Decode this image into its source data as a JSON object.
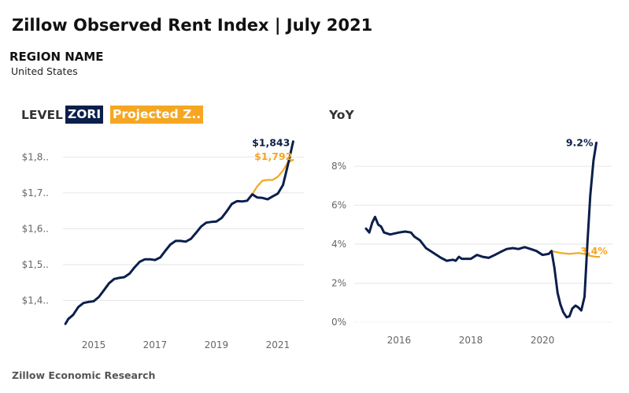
{
  "header": {
    "title": "Zillow Observed Rent Index | July 2021",
    "region_label": "REGION NAME",
    "region_value": "United States",
    "footer": "Zillow Economic Research"
  },
  "colors": {
    "actual": "#0b1f4b",
    "projected": "#f5a623",
    "grid": "#e6e6e6",
    "tick": "#666666"
  },
  "chart_data": [
    {
      "type": "line",
      "title": "LEVEL",
      "legend": [
        "ZORI",
        "Projected Z.."
      ],
      "x_ticks": [
        2015,
        2017,
        2019,
        2021
      ],
      "y_ticks": [
        1400,
        1500,
        1600,
        1700,
        1800
      ],
      "y_tick_labels": [
        "$1,4..",
        "$1,5..",
        "$1,6..",
        "$1,7..",
        "$1,8.."
      ],
      "xlim": [
        2014.0,
        2021.85
      ],
      "ylim": [
        1320,
        1860
      ],
      "grid": "horizontal",
      "end_labels": {
        "actual": "$1,843",
        "projected": "$1,792"
      },
      "series": [
        {
          "name": "ZORI",
          "points": [
            [
              2014.08,
              1335
            ],
            [
              2014.17,
              1348
            ],
            [
              2014.33,
              1360
            ],
            [
              2014.5,
              1382
            ],
            [
              2014.67,
              1393
            ],
            [
              2014.83,
              1396
            ],
            [
              2015.0,
              1398
            ],
            [
              2015.17,
              1410
            ],
            [
              2015.33,
              1428
            ],
            [
              2015.5,
              1448
            ],
            [
              2015.67,
              1460
            ],
            [
              2015.83,
              1463
            ],
            [
              2016.0,
              1465
            ],
            [
              2016.17,
              1475
            ],
            [
              2016.33,
              1492
            ],
            [
              2016.5,
              1508
            ],
            [
              2016.67,
              1515
            ],
            [
              2016.83,
              1515
            ],
            [
              2017.0,
              1513
            ],
            [
              2017.17,
              1520
            ],
            [
              2017.33,
              1538
            ],
            [
              2017.5,
              1556
            ],
            [
              2017.67,
              1566
            ],
            [
              2017.83,
              1566
            ],
            [
              2018.0,
              1564
            ],
            [
              2018.17,
              1572
            ],
            [
              2018.33,
              1588
            ],
            [
              2018.5,
              1606
            ],
            [
              2018.67,
              1617
            ],
            [
              2018.83,
              1619
            ],
            [
              2019.0,
              1620
            ],
            [
              2019.17,
              1630
            ],
            [
              2019.33,
              1648
            ],
            [
              2019.5,
              1669
            ],
            [
              2019.67,
              1677
            ],
            [
              2019.83,
              1676
            ],
            [
              2020.0,
              1678
            ],
            [
              2020.17,
              1696
            ],
            [
              2020.33,
              1687
            ],
            [
              2020.5,
              1686
            ],
            [
              2020.67,
              1682
            ],
            [
              2020.83,
              1690
            ],
            [
              2021.0,
              1698
            ],
            [
              2021.17,
              1722
            ],
            [
              2021.33,
              1778
            ],
            [
              2021.5,
              1843
            ]
          ]
        },
        {
          "name": "Projected Z..",
          "points": [
            [
              2020.17,
              1696
            ],
            [
              2020.33,
              1718
            ],
            [
              2020.5,
              1734
            ],
            [
              2020.67,
              1736
            ],
            [
              2020.83,
              1736
            ],
            [
              2021.0,
              1745
            ],
            [
              2021.17,
              1762
            ],
            [
              2021.33,
              1785
            ],
            [
              2021.5,
              1792
            ]
          ]
        }
      ]
    },
    {
      "type": "line",
      "title": "YoY",
      "x_ticks": [
        2016,
        2018,
        2020
      ],
      "y_ticks": [
        0,
        2,
        4,
        6,
        8
      ],
      "y_tick_labels": [
        "0%",
        "2%",
        "4%",
        "6%",
        "8%"
      ],
      "xlim": [
        2014.75,
        2021.95
      ],
      "ylim": [
        0,
        9.5
      ],
      "grid": "horizontal",
      "end_labels": {
        "actual": "9.2%",
        "projected": "3.4%"
      },
      "series": [
        {
          "name": "YoY",
          "points": [
            [
              2015.08,
              4.8
            ],
            [
              2015.17,
              4.6
            ],
            [
              2015.25,
              5.1
            ],
            [
              2015.33,
              5.4
            ],
            [
              2015.42,
              5.0
            ],
            [
              2015.5,
              4.9
            ],
            [
              2015.58,
              4.6
            ],
            [
              2015.75,
              4.5
            ],
            [
              2016.0,
              4.6
            ],
            [
              2016.17,
              4.65
            ],
            [
              2016.33,
              4.6
            ],
            [
              2016.42,
              4.4
            ],
            [
              2016.58,
              4.2
            ],
            [
              2016.75,
              3.8
            ],
            [
              2017.0,
              3.5
            ],
            [
              2017.17,
              3.3
            ],
            [
              2017.33,
              3.15
            ],
            [
              2017.5,
              3.2
            ],
            [
              2017.58,
              3.15
            ],
            [
              2017.67,
              3.35
            ],
            [
              2017.75,
              3.25
            ],
            [
              2018.0,
              3.25
            ],
            [
              2018.17,
              3.45
            ],
            [
              2018.33,
              3.35
            ],
            [
              2018.5,
              3.3
            ],
            [
              2018.67,
              3.45
            ],
            [
              2018.83,
              3.6
            ],
            [
              2019.0,
              3.75
            ],
            [
              2019.17,
              3.8
            ],
            [
              2019.33,
              3.75
            ],
            [
              2019.5,
              3.85
            ],
            [
              2019.67,
              3.75
            ],
            [
              2019.83,
              3.65
            ],
            [
              2020.0,
              3.45
            ],
            [
              2020.17,
              3.5
            ],
            [
              2020.25,
              3.65
            ],
            [
              2020.33,
              2.8
            ],
            [
              2020.42,
              1.5
            ],
            [
              2020.5,
              0.9
            ],
            [
              2020.58,
              0.5
            ],
            [
              2020.67,
              0.25
            ],
            [
              2020.75,
              0.3
            ],
            [
              2020.83,
              0.7
            ],
            [
              2020.92,
              0.85
            ],
            [
              2021.0,
              0.75
            ],
            [
              2021.08,
              0.6
            ],
            [
              2021.17,
              1.3
            ],
            [
              2021.25,
              4.0
            ],
            [
              2021.33,
              6.5
            ],
            [
              2021.42,
              8.3
            ],
            [
              2021.5,
              9.2
            ]
          ]
        },
        {
          "name": "Projected",
          "points": [
            [
              2020.25,
              3.65
            ],
            [
              2020.5,
              3.55
            ],
            [
              2020.75,
              3.5
            ],
            [
              2021.0,
              3.55
            ],
            [
              2021.17,
              3.5
            ],
            [
              2021.33,
              3.4
            ],
            [
              2021.5,
              3.35
            ],
            [
              2021.58,
              3.35
            ]
          ]
        }
      ]
    }
  ]
}
